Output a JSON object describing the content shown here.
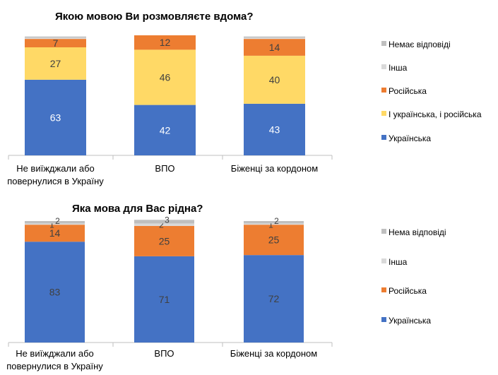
{
  "colors": {
    "Українська": "#4472c4",
    "І українська, і російська": "#ffd966",
    "Російська": "#ed7d31",
    "Інша": "#d9d9d9",
    "Немає відповіді": "#bfbfbf"
  },
  "chart_data": [
    {
      "type": "bar",
      "stacked": true,
      "title": "Якою мовою Ви розмовляєте вдома?",
      "categories": [
        "Не виїжджали або повернулися в Україну",
        "ВПО",
        "Біженці за кордоном"
      ],
      "category_lines": [
        [
          "Не виїжджали або",
          "повернулися в Україну"
        ],
        [
          "ВПО"
        ],
        [
          "Біженці за кордоном"
        ]
      ],
      "legend_position": "right",
      "series": [
        {
          "name": "Українська",
          "color": "#4472c4",
          "values": [
            63,
            42,
            43
          ],
          "labeled": true,
          "label_color": "#ffffff"
        },
        {
          "name": "І українська, і російська",
          "color": "#ffd966",
          "values": [
            27,
            46,
            40
          ],
          "labeled": true,
          "label_color": "#404040"
        },
        {
          "name": "Російська",
          "color": "#ed7d31",
          "values": [
            7,
            12,
            14
          ],
          "labeled": true,
          "label_color": "#404040"
        },
        {
          "name": "Інша",
          "color": "#d9d9d9",
          "values": [
            1,
            0,
            1
          ],
          "labeled": false
        },
        {
          "name": "Немає відповіді",
          "color": "#bfbfbf",
          "values": [
            1,
            0,
            1
          ],
          "labeled": false
        }
      ]
    },
    {
      "type": "bar",
      "stacked": true,
      "title": "Яка мова для Вас рідна?",
      "categories": [
        "Не виїжджали або повернулися в Україну",
        "ВПО",
        "Біженці за кордоном"
      ],
      "category_lines": [
        [
          "Не виїжджали або",
          "повернулися в Україну"
        ],
        [
          "ВПО"
        ],
        [
          "Біженці за кордоном"
        ]
      ],
      "legend_position": "right",
      "series": [
        {
          "name": "Українська",
          "color": "#4472c4",
          "values": [
            83,
            71,
            72
          ],
          "labeled": true,
          "label_color": "#404040"
        },
        {
          "name": "Російська",
          "color": "#ed7d31",
          "values": [
            14,
            25,
            25
          ],
          "labeled": true,
          "label_color": "#404040"
        },
        {
          "name": "Інша",
          "color": "#d9d9d9",
          "values": [
            1,
            2,
            1
          ],
          "labeled": true,
          "label_color": "#404040"
        },
        {
          "name": "Нема відповіді",
          "color": "#bfbfbf",
          "values": [
            2,
            3,
            2
          ],
          "labeled": true,
          "label_color": "#404040"
        }
      ]
    }
  ]
}
